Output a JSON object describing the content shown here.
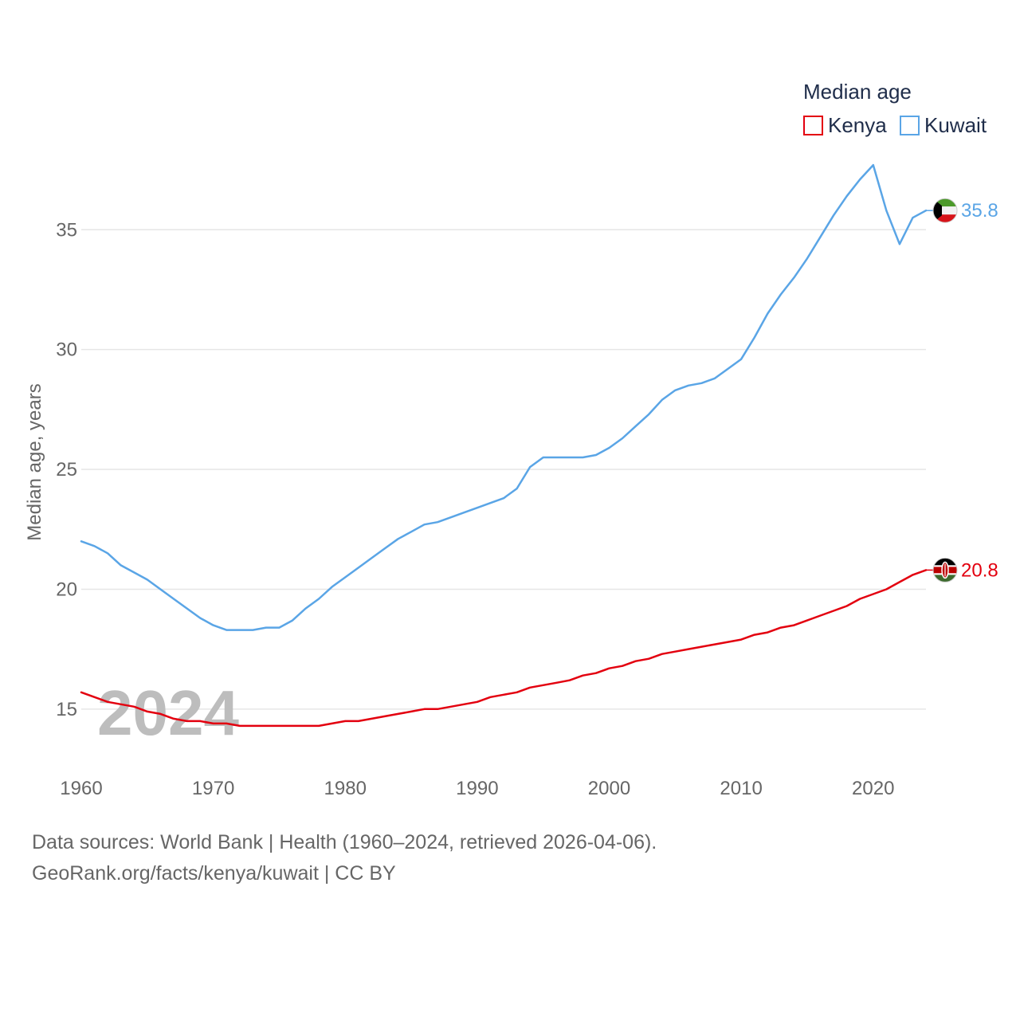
{
  "chart_data": {
    "type": "line",
    "title": "",
    "xlabel": "",
    "ylabel": "Median age, years",
    "xlim": [
      1960,
      2024
    ],
    "ylim": [
      13,
      38.5
    ],
    "x_ticks": [
      1960,
      1970,
      1980,
      1990,
      2000,
      2010,
      2020
    ],
    "y_ticks": [
      15,
      20,
      25,
      30,
      35
    ],
    "grid": true,
    "legend": {
      "title": "Median age",
      "position": "top-right"
    },
    "year_label": "2024",
    "x": [
      1960,
      1961,
      1962,
      1963,
      1964,
      1965,
      1966,
      1967,
      1968,
      1969,
      1970,
      1971,
      1972,
      1973,
      1974,
      1975,
      1976,
      1977,
      1978,
      1979,
      1980,
      1981,
      1982,
      1983,
      1984,
      1985,
      1986,
      1987,
      1988,
      1989,
      1990,
      1991,
      1992,
      1993,
      1994,
      1995,
      1996,
      1997,
      1998,
      1999,
      2000,
      2001,
      2002,
      2003,
      2004,
      2005,
      2006,
      2007,
      2008,
      2009,
      2010,
      2011,
      2012,
      2013,
      2014,
      2015,
      2016,
      2017,
      2018,
      2019,
      2020,
      2021,
      2022,
      2023,
      2024
    ],
    "series": [
      {
        "name": "Kenya",
        "color": "#e3000f",
        "end_label": "20.8",
        "flag": "kenya-flag",
        "values": [
          15.7,
          15.5,
          15.3,
          15.2,
          15.1,
          14.9,
          14.8,
          14.6,
          14.5,
          14.5,
          14.4,
          14.4,
          14.3,
          14.3,
          14.3,
          14.3,
          14.3,
          14.3,
          14.3,
          14.4,
          14.5,
          14.5,
          14.6,
          14.7,
          14.8,
          14.9,
          15.0,
          15.0,
          15.1,
          15.2,
          15.3,
          15.5,
          15.6,
          15.7,
          15.9,
          16.0,
          16.1,
          16.2,
          16.4,
          16.5,
          16.7,
          16.8,
          17.0,
          17.1,
          17.3,
          17.4,
          17.5,
          17.6,
          17.7,
          17.8,
          17.9,
          18.1,
          18.2,
          18.4,
          18.5,
          18.7,
          18.9,
          19.1,
          19.3,
          19.6,
          19.8,
          20.0,
          20.3,
          20.6,
          20.8
        ]
      },
      {
        "name": "Kuwait",
        "color": "#5aa5e6",
        "end_label": "35.8",
        "flag": "kuwait-flag",
        "values": [
          22.0,
          21.8,
          21.5,
          21.0,
          20.7,
          20.4,
          20.0,
          19.6,
          19.2,
          18.8,
          18.5,
          18.3,
          18.3,
          18.3,
          18.4,
          18.4,
          18.7,
          19.2,
          19.6,
          20.1,
          20.5,
          20.9,
          21.3,
          21.7,
          22.1,
          22.4,
          22.7,
          22.8,
          23.0,
          23.2,
          23.4,
          23.6,
          23.8,
          24.2,
          25.1,
          25.5,
          25.5,
          25.5,
          25.5,
          25.6,
          25.9,
          26.3,
          26.8,
          27.3,
          27.9,
          28.3,
          28.5,
          28.6,
          28.8,
          29.2,
          29.6,
          30.5,
          31.5,
          32.3,
          33.0,
          33.8,
          34.7,
          35.6,
          36.4,
          37.1,
          37.7,
          35.8,
          34.4,
          35.5,
          35.8
        ]
      }
    ]
  },
  "footer": {
    "sources": "Data sources: World Bank | Health (1960–2024, retrieved 2026-04-06).",
    "link": "GeoRank.org/facts/kenya/kuwait | CC BY"
  }
}
